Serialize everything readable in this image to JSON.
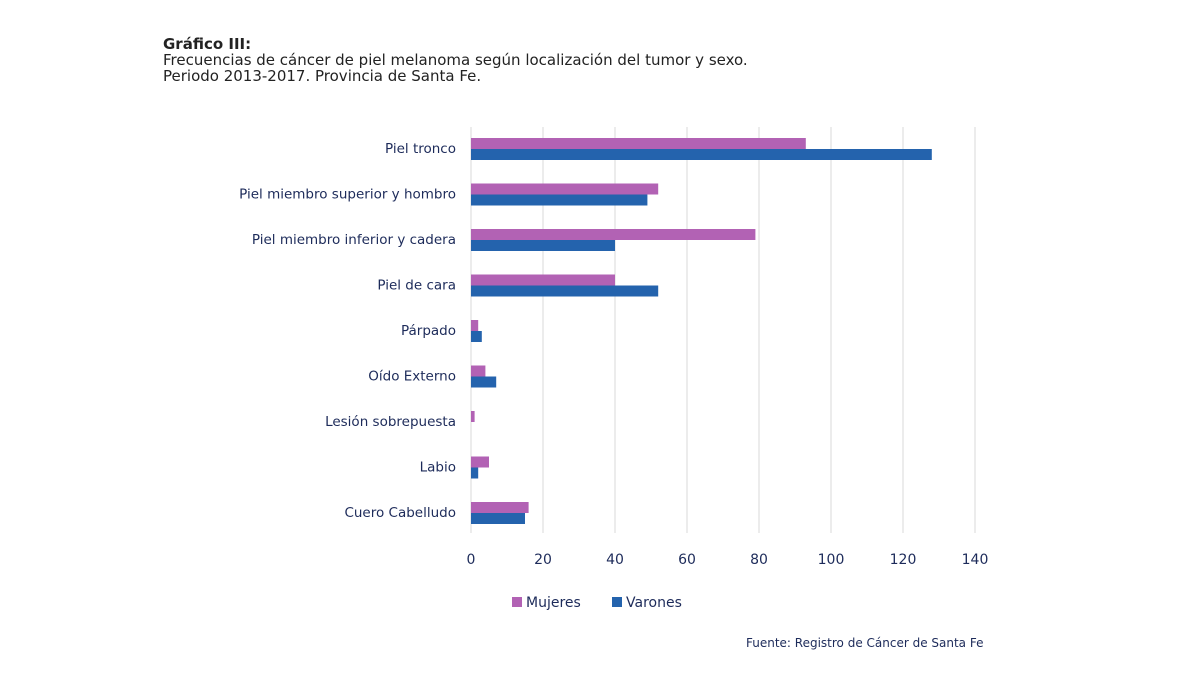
{
  "chart_data": {
    "type": "bar",
    "orientation": "horizontal",
    "title": "Gráfico III:",
    "subtitle_line1": "Frecuencias de cáncer de piel melanoma según localización del tumor y sexo.",
    "subtitle_line2": "Periodo 2013-2017. Provincia de Santa Fe.",
    "categories": [
      "Piel tronco",
      "Piel miembro superior y hombro",
      "Piel miembro inferior y cadera",
      "Piel de cara",
      "Párpado",
      "Oído Externo",
      "Lesión sobrepuesta",
      "Labio",
      "Cuero Cabelludo"
    ],
    "series": [
      {
        "name": "Mujeres",
        "color": "#b262b4",
        "values": [
          93,
          52,
          79,
          40,
          2,
          4,
          1,
          5,
          16
        ]
      },
      {
        "name": "Varones",
        "color": "#2463ad",
        "values": [
          128,
          49,
          40,
          52,
          3,
          7,
          0,
          2,
          15
        ]
      }
    ],
    "xticks": [
      0,
      20,
      40,
      60,
      80,
      100,
      120,
      140
    ],
    "xlim": [
      0,
      140
    ],
    "grid": true,
    "legend": "bottom",
    "source": "Fuente: Registro de Cáncer de Santa Fe"
  }
}
